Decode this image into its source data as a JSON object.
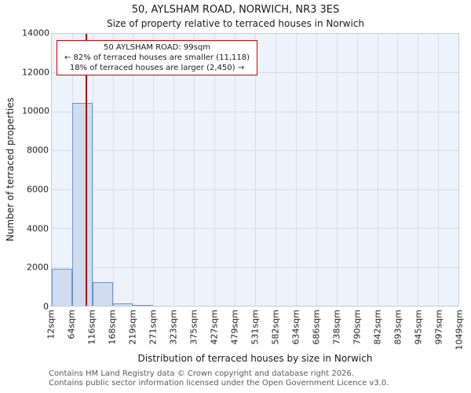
{
  "title_line1": "50, AYLSHAM ROAD, NORWICH, NR3 3ES",
  "title_line2": "Size of property relative to terraced houses in Norwich",
  "y_axis_label": "Number of terraced properties",
  "x_axis_label": "Distribution of terraced houses by size in Norwich",
  "annotation": {
    "line1": "50 AYLSHAM ROAD: 99sqm",
    "line2": "← 82% of terraced houses are smaller (11,118)",
    "line3": "18% of terraced houses are larger (2,450) →"
  },
  "footer_line1": "Contains HM Land Registry data © Crown copyright and database right 2026.",
  "footer_line2": "Contains public sector information licensed under the Open Government Licence v3.0.",
  "chart_data": {
    "type": "bar",
    "title": "50, AYLSHAM ROAD, NORWICH, NR3 3ES — Size of property relative to terraced houses in Norwich",
    "xlabel": "Distribution of terraced houses by size in Norwich",
    "ylabel": "Number of terraced properties",
    "bin_edges": [
      12,
      64,
      116,
      168,
      219,
      271,
      323,
      375,
      427,
      479,
      531,
      582,
      634,
      686,
      738,
      790,
      842,
      893,
      945,
      997,
      1049
    ],
    "tick_labels": [
      "12sqm",
      "64sqm",
      "116sqm",
      "168sqm",
      "219sqm",
      "271sqm",
      "323sqm",
      "375sqm",
      "427sqm",
      "479sqm",
      "531sqm",
      "582sqm",
      "634sqm",
      "686sqm",
      "738sqm",
      "790sqm",
      "842sqm",
      "893sqm",
      "945sqm",
      "997sqm",
      "1049sqm"
    ],
    "values": [
      1900,
      10450,
      1200,
      130,
      40,
      0,
      0,
      0,
      0,
      0,
      0,
      0,
      0,
      0,
      0,
      0,
      0,
      0,
      0,
      0
    ],
    "ylim": [
      0,
      14000
    ],
    "yticks": [
      0,
      2000,
      4000,
      6000,
      8000,
      10000,
      12000,
      14000
    ],
    "marker_value": 99,
    "grid": true,
    "colors": {
      "bar_fill": "#cfdcf0",
      "bar_edge": "#6e94c4",
      "marker": "#aa1111",
      "grid": "#d4dcec",
      "plot_bg": "#eef2fb",
      "annotation_border": "#cc0000"
    }
  }
}
